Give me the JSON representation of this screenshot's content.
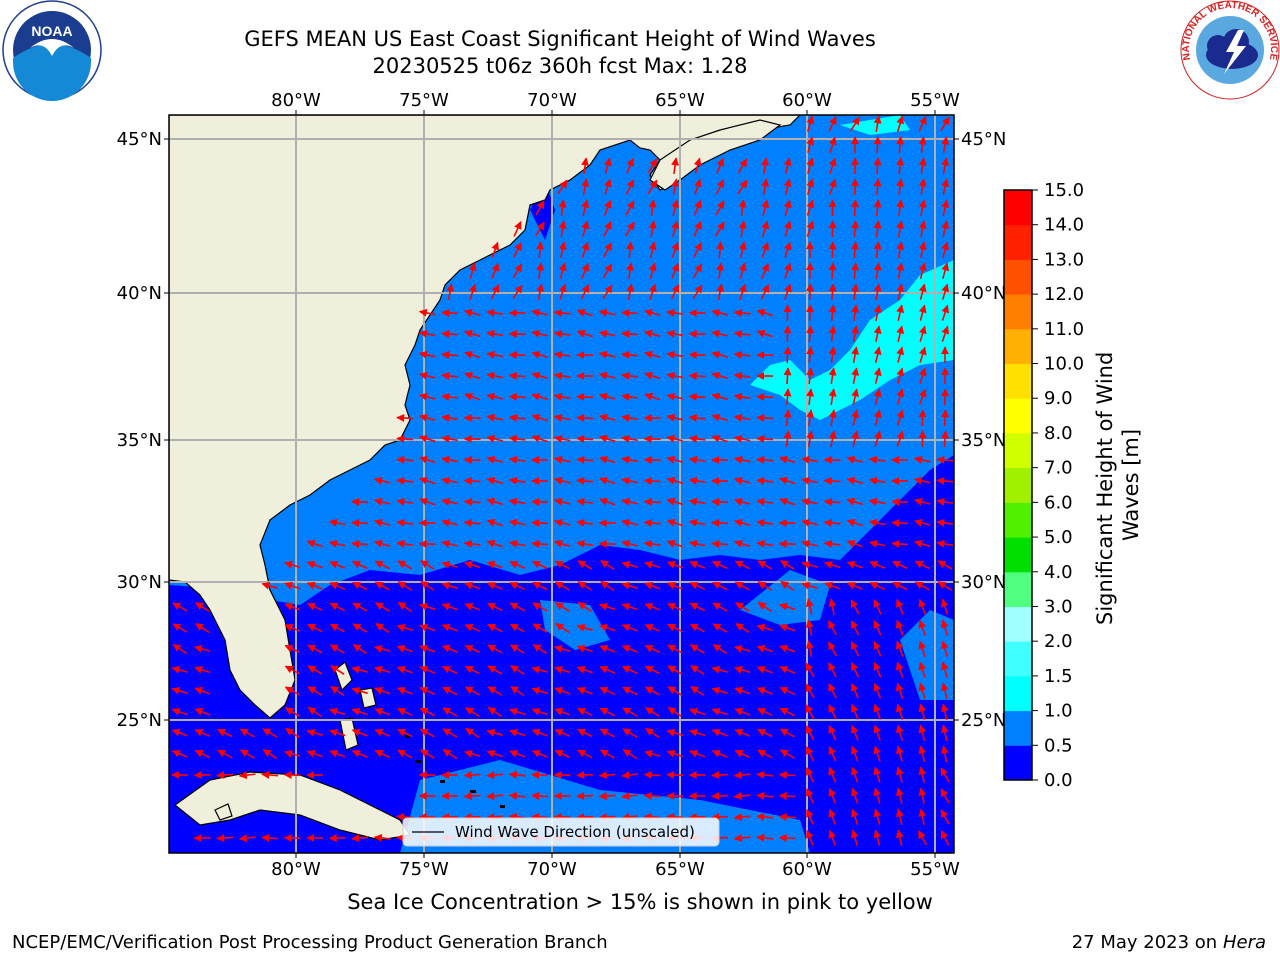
{
  "header": {
    "title_line1": "GEFS MEAN US East Coast Significant Height of Wind Waves",
    "title_line2": "20230525 t06z 360h fcst   Max: 1.28"
  },
  "logos": {
    "left": {
      "icon": "noaa-logo-icon",
      "text": "NOAA",
      "ring_text": "NATIONAL OCEANIC AND ATMOSPHERIC ADMINISTRATION · U.S. DEPARTMENT OF COMMERCE"
    },
    "right": {
      "icon": "nws-logo-icon",
      "ring_text": "NATIONAL WEATHER SERVICE"
    }
  },
  "map": {
    "lon_labels": [
      "80°W",
      "75°W",
      "70°W",
      "65°W",
      "60°W",
      "55°W"
    ],
    "lat_labels": [
      "45°N",
      "40°N",
      "35°N",
      "30°N",
      "25°N"
    ],
    "legend_label": "Wind Wave Direction (unscaled)",
    "colors": {
      "land": "#efefdc",
      "coast": "#000000",
      "grid": "#b0b0b0",
      "arrow": "#ff0000"
    }
  },
  "colorbar": {
    "label": "Significant Height of Wind Waves [m]",
    "tick_labels": [
      "0.0",
      "0.5",
      "1.0",
      "1.5",
      "2.0",
      "3.0",
      "4.0",
      "5.0",
      "6.0",
      "7.0",
      "8.0",
      "9.0",
      "10.0",
      "11.0",
      "12.0",
      "13.0",
      "14.0",
      "15.0"
    ],
    "colors": [
      "#0000ff",
      "#0080ff",
      "#00ffff",
      "#40ffff",
      "#a0ffff",
      "#50ff80",
      "#00e000",
      "#50f000",
      "#a0f000",
      "#d0ff00",
      "#ffff00",
      "#ffe000",
      "#ffb000",
      "#ff8000",
      "#ff5000",
      "#ff2000",
      "#ff0000"
    ]
  },
  "caption": "Sea Ice Concentration > 15% is shown in pink to yellow",
  "footer": {
    "left": "NCEP/EMC/Verification Post Processing Product Generation Branch",
    "right_date": "27 May 2023 on",
    "right_host": "Hera"
  }
}
